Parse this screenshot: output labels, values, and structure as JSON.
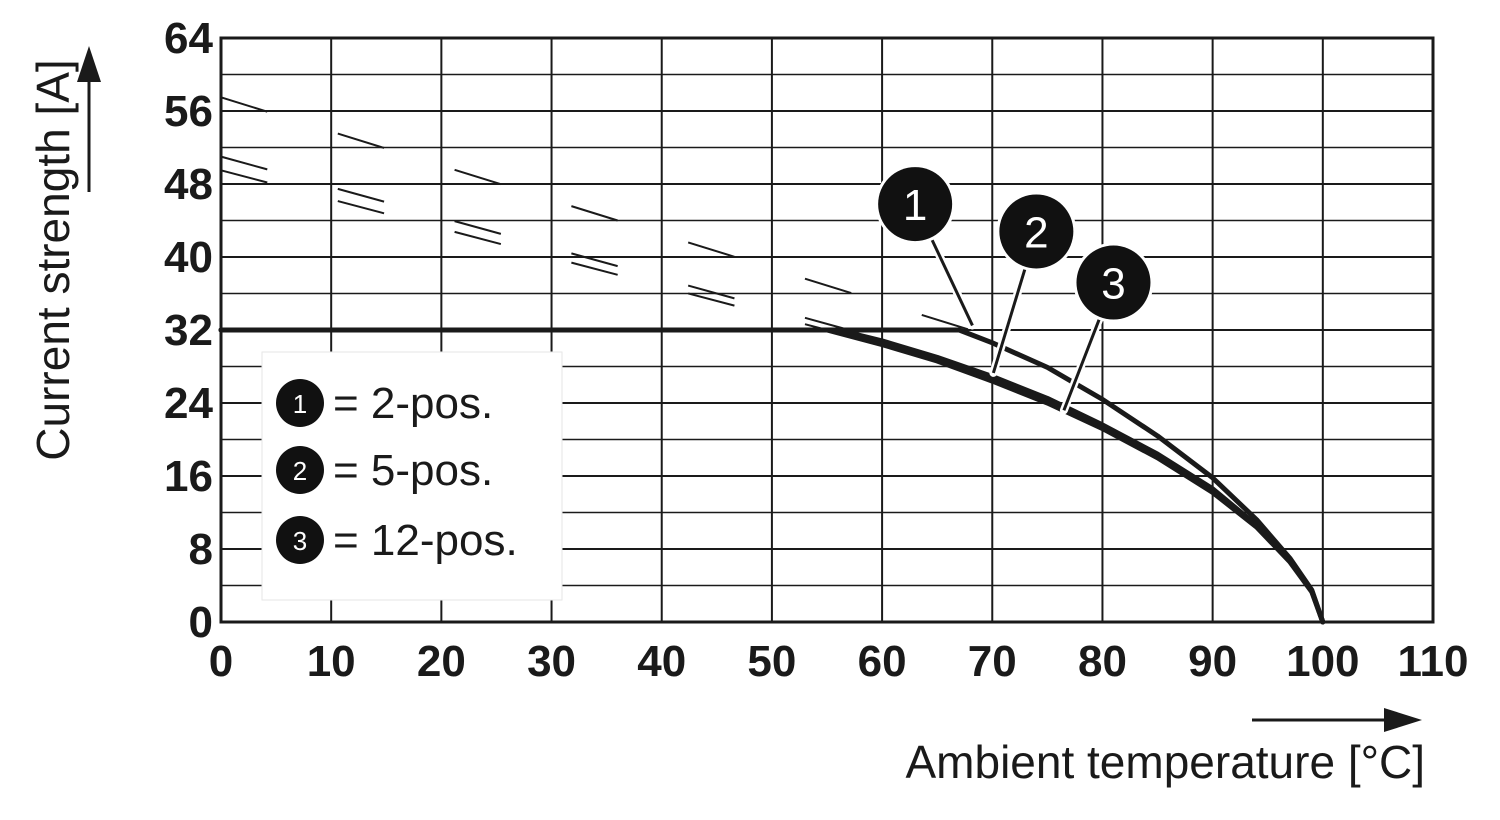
{
  "chart_data": {
    "type": "line",
    "xlabel": "Ambient temperature [°C]",
    "ylabel": "Current strength [A]",
    "xlim": [
      0,
      110
    ],
    "ylim": [
      0,
      64
    ],
    "xticks": [
      0,
      10,
      20,
      30,
      40,
      50,
      60,
      70,
      80,
      90,
      100,
      110
    ],
    "yticks": [
      0,
      8,
      16,
      24,
      32,
      40,
      48,
      56,
      64
    ],
    "y_minor_step": 4,
    "grid": true,
    "legend_position": "bottom-left",
    "colors": {
      "line": "#1a1a1a",
      "marker_fill": "#111111",
      "grid": "#1a1a1a"
    },
    "series": [
      {
        "id": "1",
        "label": "= 2-pos.",
        "x": [
          0,
          67,
          70,
          75,
          80,
          85,
          90,
          94,
          97,
          99,
          100
        ],
        "y": [
          32,
          32,
          30.6,
          27.9,
          24.4,
          20.4,
          15.8,
          11.2,
          7.0,
          3.5,
          0
        ]
      },
      {
        "id": "2",
        "label": "= 5-pos.",
        "x": [
          0,
          56,
          60,
          65,
          70,
          75,
          80,
          85,
          90,
          94,
          97,
          99,
          100
        ],
        "y": [
          32,
          32,
          30.8,
          29.0,
          26.9,
          24.5,
          21.6,
          18.4,
          14.6,
          10.6,
          6.8,
          3.4,
          0
        ]
      },
      {
        "id": "3",
        "label": "= 12-pos.",
        "x": [
          0,
          55,
          60,
          65,
          70,
          75,
          80,
          85,
          90,
          94,
          97,
          99,
          100
        ],
        "y": [
          32,
          32,
          30.4,
          28.6,
          26.4,
          24.0,
          21.2,
          18.0,
          14.2,
          10.4,
          6.6,
          3.3,
          0
        ]
      }
    ],
    "dashed_extensions": [
      {
        "x": [
          0,
          68
        ],
        "y": [
          57.5,
          32
        ]
      },
      {
        "x": [
          0,
          57
        ],
        "y": [
          51,
          32
        ]
      },
      {
        "x": [
          0,
          55
        ],
        "y": [
          49.5,
          32
        ]
      }
    ],
    "markers": [
      {
        "label": "1",
        "x": 63,
        "y": 45.8,
        "points_to_x": 68.2,
        "points_to_y": 32.5
      },
      {
        "label": "2",
        "x": 74,
        "y": 42.8,
        "points_to_x": 70.1,
        "points_to_y": 27.3
      },
      {
        "label": "3",
        "x": 81,
        "y": 37.2,
        "points_to_x": 76.5,
        "points_to_y": 23.2
      }
    ]
  }
}
